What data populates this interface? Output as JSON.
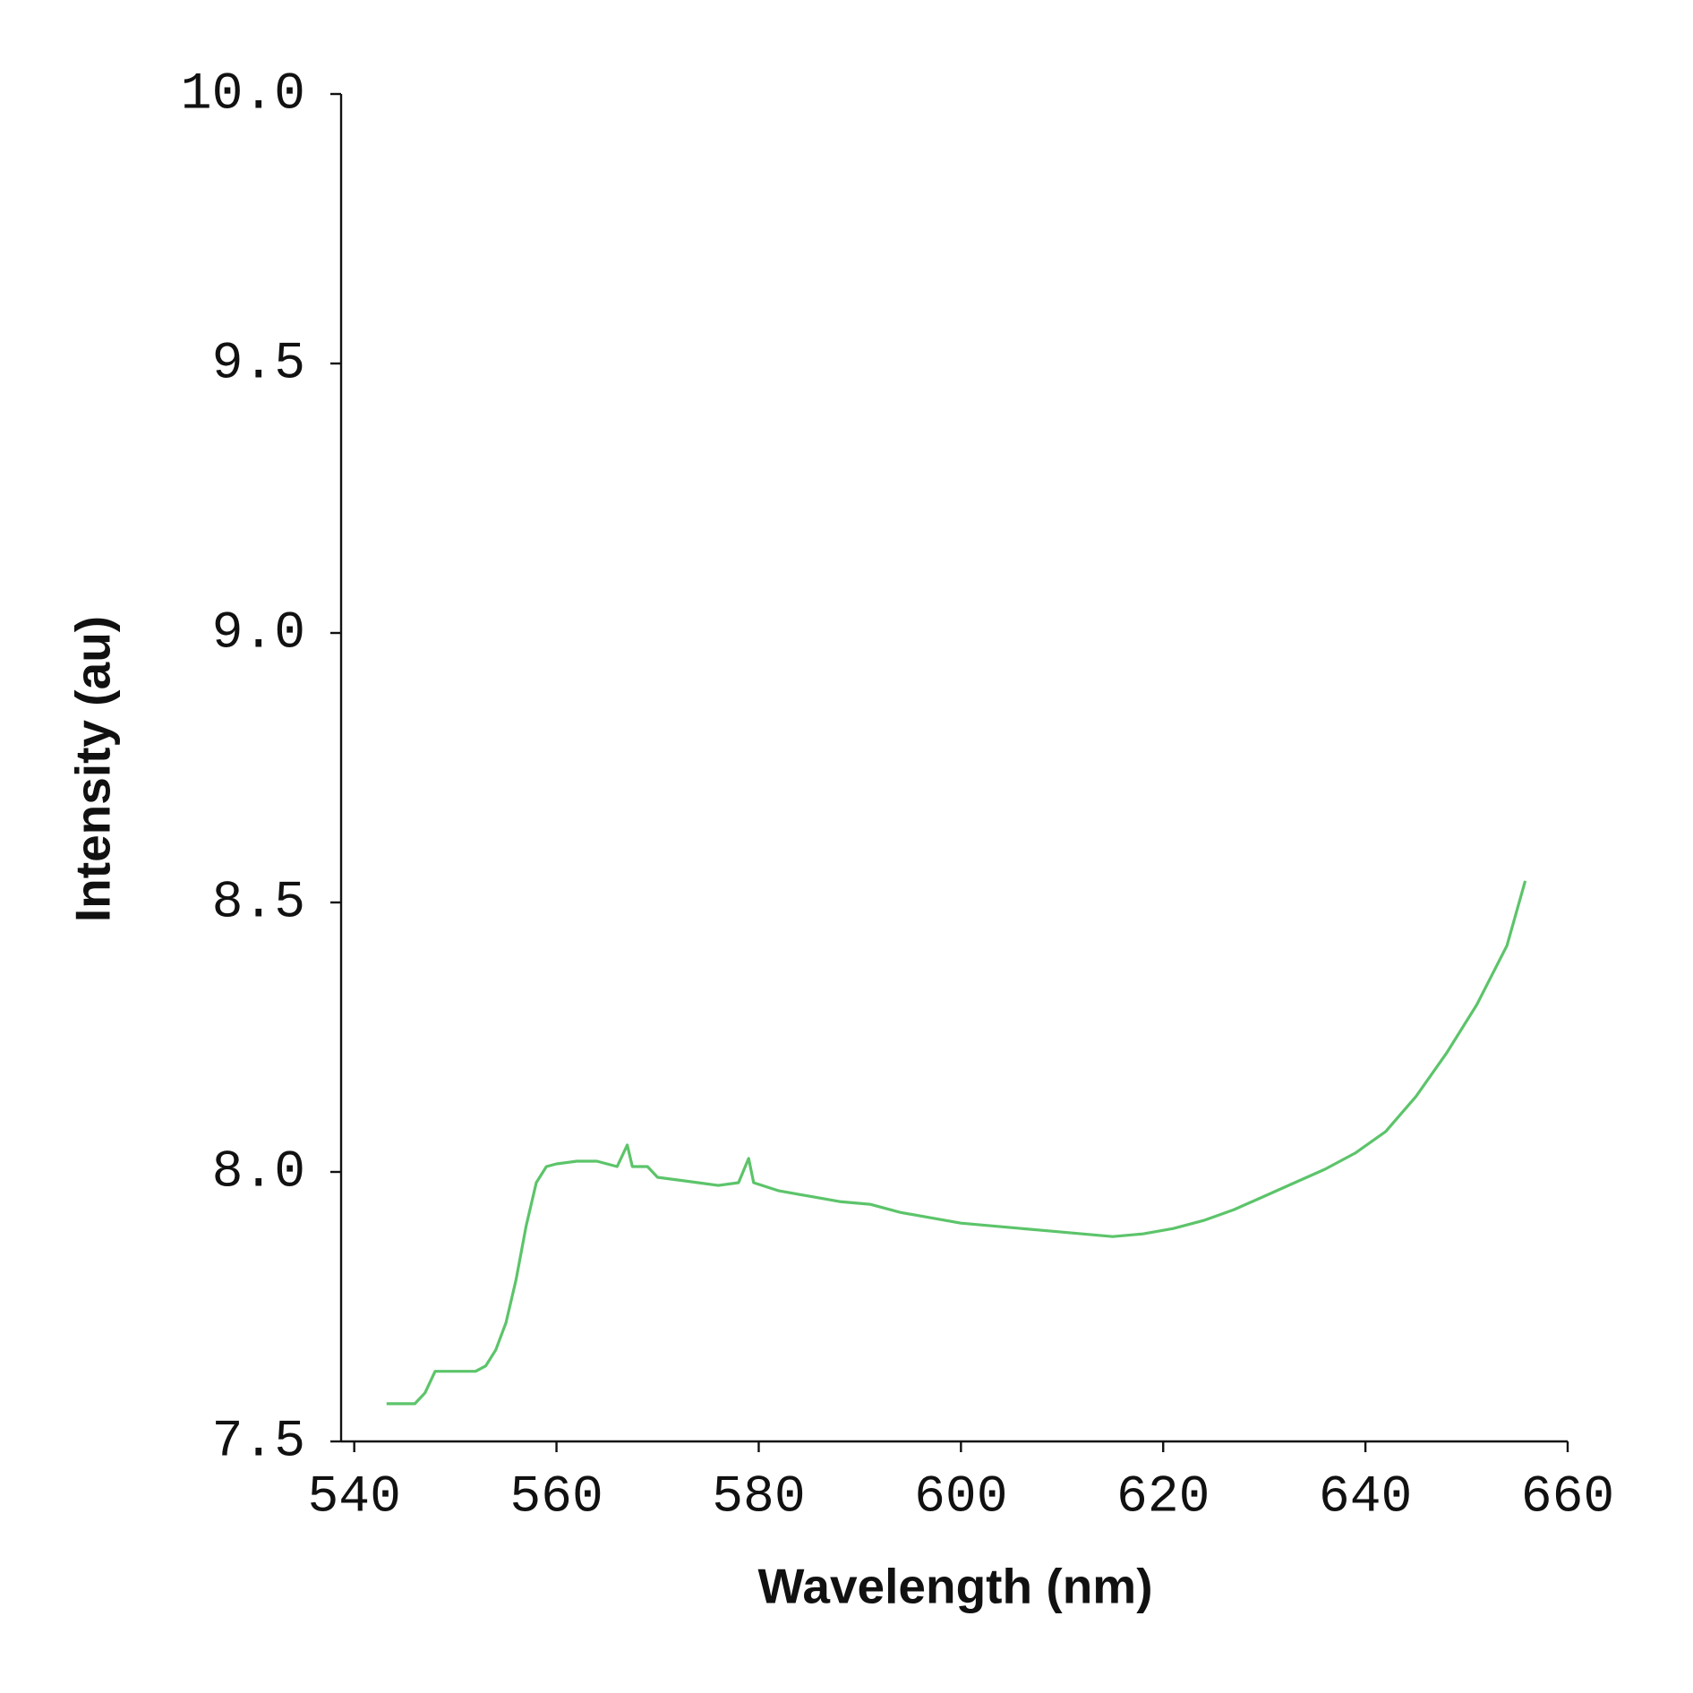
{
  "chart_data": {
    "type": "line",
    "xlabel": "Wavelength (nm)",
    "ylabel": "Intensity (au)",
    "x": [
      543.2,
      546,
      547,
      548,
      550,
      552,
      553,
      554,
      555,
      556,
      557,
      558,
      559,
      560,
      562,
      564,
      566,
      567,
      567.5,
      569,
      570,
      572,
      574,
      576,
      578,
      579,
      579.5,
      582,
      585,
      588,
      591,
      594,
      597,
      600,
      603,
      606,
      609,
      612,
      615,
      618,
      621,
      624,
      627,
      630,
      633,
      636,
      639,
      642,
      645,
      648,
      651,
      654,
      655.8
    ],
    "series": [
      {
        "color": "#5cc46a",
        "values": [
          7.57,
          7.57,
          7.59,
          7.63,
          7.63,
          7.63,
          7.64,
          7.67,
          7.72,
          7.8,
          7.9,
          7.98,
          8.01,
          8.015,
          8.02,
          8.02,
          8.01,
          8.05,
          8.01,
          8.01,
          7.99,
          7.985,
          7.98,
          7.975,
          7.98,
          8.025,
          7.98,
          7.965,
          7.955,
          7.945,
          7.94,
          7.925,
          7.915,
          7.905,
          7.9,
          7.895,
          7.89,
          7.885,
          7.88,
          7.885,
          7.895,
          7.91,
          7.93,
          7.955,
          7.98,
          8.005,
          8.035,
          8.075,
          8.14,
          8.22,
          8.31,
          8.42,
          8.54
        ]
      }
    ],
    "xlim": [
      538.7,
      660
    ],
    "xticks": [
      540,
      560,
      580,
      600,
      620,
      640,
      660
    ],
    "ylim": [
      7.5,
      10
    ],
    "yticks": [
      {
        "value": 7.5,
        "label": "7.5"
      },
      {
        "value": 8,
        "label": "8.0"
      },
      {
        "value": 8.5,
        "label": "8.5"
      },
      {
        "value": 9,
        "label": "9.0"
      },
      {
        "value": 9.5,
        "label": "9.5"
      },
      {
        "value": 10,
        "label": "10.0"
      }
    ],
    "grid": false
  }
}
